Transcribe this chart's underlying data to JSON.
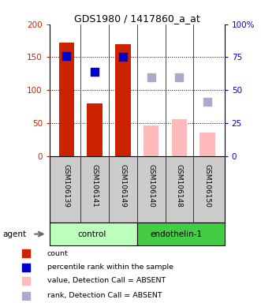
{
  "title": "GDS1980 / 1417860_a_at",
  "samples": [
    "GSM106139",
    "GSM106141",
    "GSM106149",
    "GSM106140",
    "GSM106148",
    "GSM106150"
  ],
  "bar_values": [
    172,
    80,
    170,
    46,
    56,
    36
  ],
  "bar_colors": [
    "#cc2200",
    "#cc2200",
    "#cc2200",
    "#ffbbbb",
    "#ffbbbb",
    "#ffbbbb"
  ],
  "dot_values": [
    152,
    128,
    151,
    null,
    null,
    null
  ],
  "rank_dots": [
    null,
    null,
    null,
    120,
    120,
    82
  ],
  "ylim_left": [
    0,
    200
  ],
  "ylim_right": [
    0,
    100
  ],
  "left_ticks": [
    0,
    50,
    100,
    150,
    200
  ],
  "right_ticks": [
    0,
    25,
    50,
    75,
    100
  ],
  "left_tick_labels": [
    "0",
    "50",
    "100",
    "150",
    "200"
  ],
  "right_tick_labels": [
    "0",
    "25",
    "50",
    "75",
    "100%"
  ],
  "left_color": "#cc2200",
  "right_color": "#0000cc",
  "blue_dot_color": "#0000cc",
  "rank_dot_color": "#aaaacc",
  "control_color": "#bbffbb",
  "endothelin_color": "#44cc44",
  "gray_bg": "#cccccc",
  "legend_items": [
    {
      "label": "count",
      "color": "#cc2200"
    },
    {
      "label": "percentile rank within the sample",
      "color": "#0000cc"
    },
    {
      "label": "value, Detection Call = ABSENT",
      "color": "#ffbbbb"
    },
    {
      "label": "rank, Detection Call = ABSENT",
      "color": "#aaaacc"
    }
  ],
  "bar_width": 0.55,
  "dot_size": 50,
  "figsize": [
    3.31,
    3.84
  ],
  "dpi": 100
}
